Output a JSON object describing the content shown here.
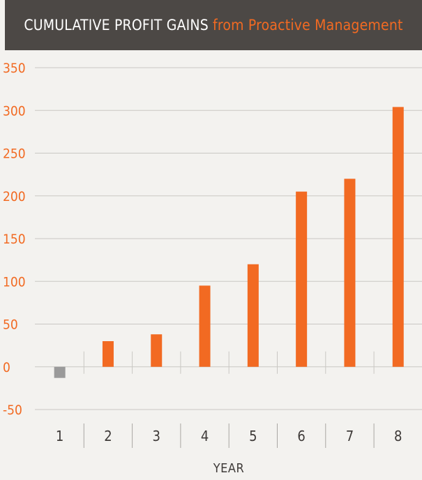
{
  "header": {
    "title_part1": "CUMULATIVE PROFIT GAINS",
    "title_part2": "from Proactive Management"
  },
  "chart_data": {
    "type": "bar",
    "title": "CUMULATIVE PROFIT GAINS from Proactive Management",
    "categories": [
      "1",
      "2",
      "3",
      "4",
      "5",
      "6",
      "7",
      "8"
    ],
    "values": [
      -13,
      30,
      38,
      95,
      120,
      205,
      220,
      304
    ],
    "xlabel": "YEAR",
    "ylabel": "",
    "ylim": [
      -50,
      350
    ],
    "yticks": [
      "350",
      "300",
      "250",
      "200",
      "150",
      "100",
      "50",
      "0",
      "-50"
    ],
    "grid": true,
    "colors": {
      "positive": "#f26a22",
      "negative": "#9a9a9a",
      "grid": "#c9c7c3",
      "tick": "#f26a22"
    }
  }
}
